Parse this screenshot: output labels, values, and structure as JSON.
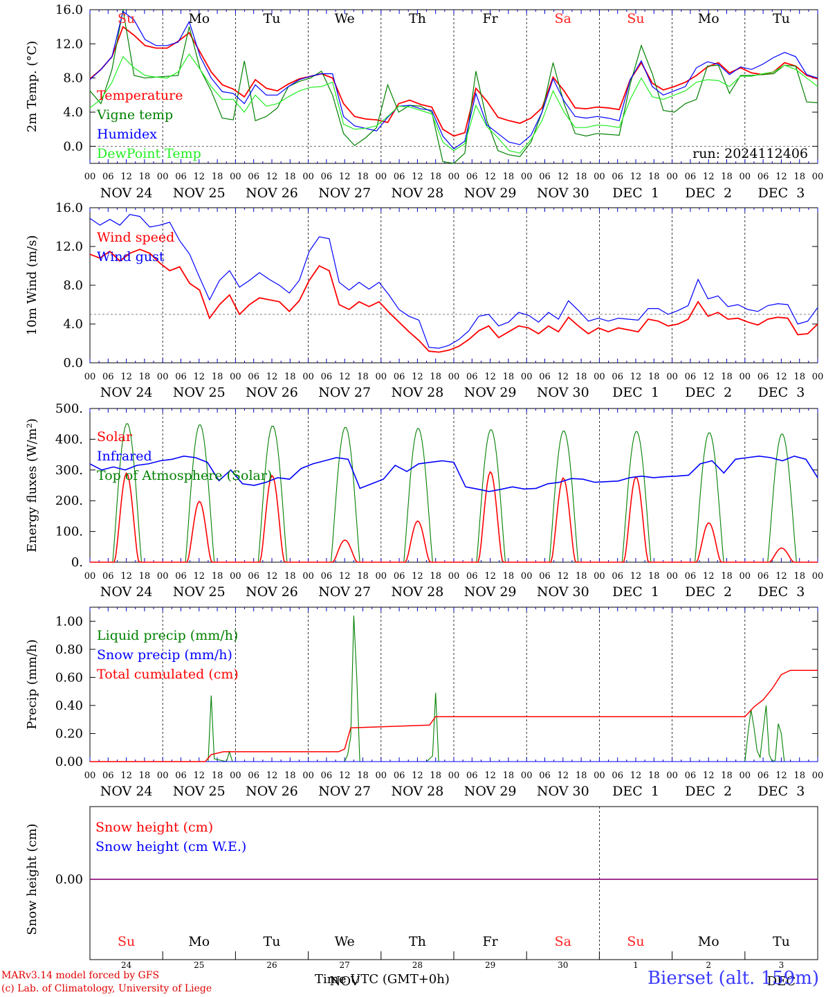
{
  "footer": {
    "credit_line1": "MARv3.14 model forced by GFS",
    "credit_line2": "(c) Lab. of Climatology, University of Liege",
    "x_title": "Time UTC (GMT+0h)",
    "station": "Bierset (alt. 159m)"
  },
  "colors": {
    "red": "#ff0000",
    "dark_green": "#008000",
    "blue": "#0000ff",
    "light_green": "#22ee22",
    "purple": "#800080"
  },
  "chart_data": [
    {
      "type": "line",
      "ylabel": "2m Temp. (°C)",
      "ylim": [
        -2,
        16
      ],
      "yticks": [
        "0.0",
        "4.0",
        "8.0",
        "12.0",
        "16.0"
      ],
      "run_label": "run: 2024112406",
      "reference_line": 0,
      "day_labels": [
        {
          "text": "Su",
          "weekend": true
        },
        {
          "text": "Mo",
          "weekend": false
        },
        {
          "text": "Tu",
          "weekend": false
        },
        {
          "text": "We",
          "weekend": false
        },
        {
          "text": "Th",
          "weekend": false
        },
        {
          "text": "Fr",
          "weekend": false
        },
        {
          "text": "Sa",
          "weekend": true
        },
        {
          "text": "Su",
          "weekend": true
        },
        {
          "text": "Mo",
          "weekend": false
        },
        {
          "text": "Tu",
          "weekend": false
        }
      ],
      "date_labels": [
        "NOV 24",
        "NOV 25",
        "NOV 26",
        "NOV 27",
        "NOV 28",
        "NOV 29",
        "NOV 30",
        "DEC  1",
        "DEC  2",
        "DEC  3"
      ],
      "x_hours": [
        0,
        3,
        6,
        9,
        12,
        15,
        18,
        21,
        24,
        27,
        30,
        33,
        36,
        39,
        42,
        45,
        48,
        51,
        54,
        57,
        60,
        63,
        66,
        69,
        72,
        75,
        78,
        81,
        84,
        87,
        90,
        93,
        96,
        99,
        102,
        105,
        108,
        111,
        114,
        117,
        120,
        123,
        126,
        129,
        132,
        135,
        138,
        141,
        144,
        147,
        150,
        153,
        156,
        159,
        162,
        165,
        168,
        171,
        174,
        177,
        180,
        183,
        186,
        189,
        192,
        195,
        198,
        201,
        204,
        207,
        210,
        213,
        216,
        219,
        222,
        225,
        228,
        231,
        234,
        237,
        240
      ],
      "series": [
        {
          "name": "Temperature",
          "color": "red",
          "values": [
            7.9,
            9.0,
            10.5,
            14.0,
            13.0,
            11.8,
            11.5,
            11.5,
            12.3,
            13.3,
            11.0,
            8.7,
            7.2,
            6.7,
            5.8,
            7.8,
            6.8,
            6.5,
            7.3,
            7.9,
            8.2,
            8.5,
            8.0,
            5.0,
            3.5,
            3.2,
            3.1,
            2.8,
            5.0,
            5.4,
            4.9,
            4.6,
            2.0,
            1.2,
            1.6,
            6.8,
            5.3,
            3.4,
            3.0,
            2.7,
            3.3,
            4.5,
            8.1,
            6.5,
            4.5,
            4.4,
            4.6,
            4.5,
            4.3,
            7.8,
            9.8,
            7.4,
            6.6,
            7.0,
            7.5,
            8.3,
            9.3,
            9.8,
            8.6,
            9.2,
            8.6,
            8.4,
            8.7,
            9.8,
            9.4,
            8.3,
            7.9
          ]
        },
        {
          "name": "Vigne temp",
          "color": "dark_green",
          "values": [
            6.5,
            5.0,
            9.0,
            16.0,
            8.3,
            8.0,
            8.1,
            8.2,
            8.3,
            14.0,
            9.0,
            6.5,
            3.3,
            3.1,
            10.0,
            3.0,
            3.5,
            4.5,
            7.0,
            7.6,
            8.0,
            8.8,
            6.0,
            1.5,
            0.1,
            1.0,
            2.2,
            7.2,
            4.0,
            4.8,
            4.7,
            4.0,
            -1.8,
            -2.0,
            -0.8,
            8.8,
            3.0,
            -0.5,
            -1.0,
            -1.2,
            0.5,
            4.0,
            9.8,
            5.0,
            1.5,
            1.2,
            1.5,
            1.4,
            1.3,
            7.3,
            11.8,
            8.5,
            4.2,
            4.0,
            5.0,
            5.5,
            9.4,
            9.5,
            6.2,
            8.3,
            8.3,
            8.4,
            8.5,
            9.5,
            9.4,
            5.2,
            5.1
          ]
        },
        {
          "name": "Humidex",
          "color": "blue",
          "values": [
            7.8,
            9.0,
            10.5,
            15.8,
            14.8,
            12.5,
            11.8,
            11.8,
            12.2,
            14.6,
            10.5,
            8.0,
            6.4,
            6.2,
            5.0,
            7.2,
            6.0,
            6.0,
            7.0,
            7.8,
            8.2,
            8.5,
            8.5,
            3.5,
            2.4,
            2.1,
            1.8,
            3.4,
            4.7,
            4.8,
            4.4,
            4.2,
            1.2,
            -0.3,
            0.6,
            6.2,
            2.5,
            1.5,
            0.5,
            0.2,
            1.3,
            4.0,
            7.9,
            5.3,
            3.5,
            3.3,
            3.5,
            3.3,
            3.0,
            7.8,
            10.0,
            7.0,
            6.0,
            6.5,
            7.0,
            9.2,
            9.9,
            9.6,
            8.4,
            9.3,
            9.0,
            9.6,
            10.4,
            11.0,
            10.5,
            8.4,
            8.0
          ]
        },
        {
          "name": "DewPoint Temp",
          "color": "light_green",
          "values": [
            4.5,
            5.5,
            7.5,
            10.5,
            9.2,
            8.3,
            8.1,
            8.0,
            8.7,
            10.8,
            9.0,
            7.0,
            5.5,
            5.5,
            4.0,
            6.0,
            4.7,
            5.0,
            5.8,
            6.5,
            6.9,
            7.0,
            7.5,
            2.6,
            2.0,
            2.1,
            2.4,
            3.5,
            4.7,
            4.6,
            4.2,
            3.8,
            0.5,
            -0.5,
            0.3,
            4.8,
            2.3,
            1.0,
            -0.5,
            -0.8,
            0.8,
            3.0,
            6.5,
            4.0,
            2.2,
            2.2,
            2.5,
            2.4,
            2.2,
            5.5,
            8.0,
            5.8,
            5.5,
            6.0,
            6.5,
            7.5,
            7.8,
            7.7,
            7.0,
            8.2,
            8.2,
            8.5,
            8.7,
            9.5,
            9.0,
            8.0,
            7.0
          ]
        }
      ]
    },
    {
      "type": "line",
      "ylabel": "10m Wind (m/s)",
      "ylim": [
        0,
        16
      ],
      "yticks": [
        "0.0",
        "4.0",
        "8.0",
        "12.0",
        "16.0"
      ],
      "reference_line": 5,
      "date_labels": [
        "NOV 24",
        "NOV 25",
        "NOV 26",
        "NOV 27",
        "NOV 28",
        "NOV 29",
        "NOV 30",
        "DEC  1",
        "DEC  2",
        "DEC  3"
      ],
      "series": [
        {
          "name": "Wind speed",
          "color": "red",
          "values": [
            11.2,
            10.8,
            11.5,
            10.5,
            11.3,
            11.7,
            11.3,
            10.3,
            9.5,
            9.9,
            8.2,
            7.5,
            4.6,
            6.0,
            7.0,
            5.0,
            6.0,
            6.7,
            6.5,
            6.3,
            5.3,
            6.4,
            8.5,
            10.0,
            9.5,
            6.0,
            5.5,
            6.3,
            5.8,
            6.3,
            5.2,
            4.2,
            3.2,
            2.3,
            1.2,
            1.1,
            1.3,
            1.7,
            2.4,
            3.3,
            3.8,
            2.6,
            3.2,
            3.8,
            3.6,
            3.0,
            3.8,
            3.2,
            4.7,
            3.8,
            3.0,
            3.6,
            3.2,
            3.6,
            3.4,
            3.2,
            4.5,
            4.3,
            3.8,
            4.0,
            4.5,
            6.3,
            4.8,
            5.2,
            4.5,
            4.6,
            4.2,
            3.9,
            4.5,
            4.7,
            4.6,
            2.9,
            3.0,
            4.0
          ]
        },
        {
          "name": "Wind gust",
          "color": "blue",
          "values": [
            14.9,
            14.2,
            14.8,
            14.2,
            15.3,
            15.1,
            14.0,
            14.2,
            14.5,
            12.6,
            11.2,
            8.8,
            6.5,
            8.5,
            9.5,
            7.8,
            8.5,
            9.3,
            8.6,
            8.0,
            7.2,
            8.5,
            11.5,
            13.0,
            12.8,
            8.3,
            7.5,
            8.3,
            7.6,
            8.3,
            7.0,
            5.5,
            4.8,
            4.4,
            1.6,
            1.5,
            1.8,
            2.4,
            3.3,
            4.8,
            5.0,
            3.8,
            4.2,
            5.2,
            4.9,
            4.2,
            5.2,
            4.5,
            6.4,
            5.4,
            4.3,
            4.6,
            4.3,
            4.6,
            4.5,
            4.4,
            5.6,
            5.6,
            5.0,
            5.4,
            5.9,
            8.6,
            6.6,
            6.9,
            5.8,
            6.0,
            5.5,
            5.3,
            5.9,
            6.1,
            6.0,
            4.0,
            4.3,
            5.7
          ]
        }
      ]
    },
    {
      "type": "line",
      "ylabel": "Energy fluxes (W/m²)",
      "ylim": [
        0,
        500
      ],
      "yticks": [
        "0.",
        "100.",
        "200.",
        "300.",
        "400.",
        "500."
      ],
      "date_labels": [
        "NOV 24",
        "NOV 25",
        "NOV 26",
        "NOV 27",
        "NOV 28",
        "NOV 29",
        "NOV 30",
        "DEC  1",
        "DEC  2",
        "DEC  3"
      ],
      "solar_peaks": [
        290,
        198,
        282,
        72,
        134,
        294,
        274,
        278,
        128,
        46
      ],
      "toa_peaks": [
        452,
        448,
        444,
        440,
        436,
        432,
        428,
        426,
        422,
        418
      ],
      "series": [
        {
          "name": "Solar",
          "color": "red"
        },
        {
          "name": "Infrared",
          "color": "blue",
          "values": [
            320,
            300,
            310,
            300,
            315,
            320,
            330,
            335,
            345,
            340,
            325,
            265,
            300,
            255,
            250,
            260,
            275,
            270,
            305,
            320,
            330,
            340,
            335,
            240,
            255,
            270,
            315,
            295,
            320,
            325,
            330,
            325,
            245,
            238,
            230,
            237,
            245,
            238,
            240,
            255,
            260,
            272,
            270,
            260,
            262,
            264,
            275,
            280,
            275,
            278,
            280,
            283,
            320,
            330,
            290,
            335,
            340,
            345,
            340,
            330,
            345,
            335,
            275
          ]
        },
        {
          "name": "Top of Atmosphere (Solar)",
          "color": "dark_green"
        }
      ]
    },
    {
      "type": "line",
      "ylabel": "Precip (mm/h)",
      "ylim": [
        0,
        1.1
      ],
      "yticks": [
        "0.00",
        "0.20",
        "0.40",
        "0.60",
        "0.80",
        "1.00"
      ],
      "date_labels": [
        "NOV 24",
        "NOV 25",
        "NOV 26",
        "NOV 27",
        "NOV 28",
        "NOV 29",
        "NOV 30",
        "DEC  1",
        "DEC  2",
        "DEC  3"
      ],
      "series": [
        {
          "name": "Liquid precip (mm/h)",
          "color": "dark_green",
          "points": [
            [
              0,
              0
            ],
            [
              39,
              0
            ],
            [
              40,
              0.47
            ],
            [
              41,
              0.02
            ],
            [
              43,
              0.01
            ],
            [
              45,
              0
            ],
            [
              46,
              0.07
            ],
            [
              47,
              0
            ],
            [
              84,
              0
            ],
            [
              85,
              0.05
            ],
            [
              86,
              0.18
            ],
            [
              87,
              1.04
            ],
            [
              88,
              0.6
            ],
            [
              89,
              0
            ],
            [
              111,
              0
            ],
            [
              112,
              0.02
            ],
            [
              113,
              0.04
            ],
            [
              114,
              0.49
            ],
            [
              115,
              0
            ],
            [
              216,
              0
            ],
            [
              217,
              0.2
            ],
            [
              218,
              0.37
            ],
            [
              219,
              0.24
            ],
            [
              220,
              0.08
            ],
            [
              221,
              0.03
            ],
            [
              222,
              0.22
            ],
            [
              223,
              0.4
            ],
            [
              224,
              0.05
            ],
            [
              225,
              0
            ],
            [
              226,
              0.01
            ],
            [
              227,
              0.27
            ],
            [
              228,
              0.2
            ],
            [
              229,
              0
            ],
            [
              240,
              0
            ]
          ]
        },
        {
          "name": "Snow precip (mm/h)",
          "color": "blue",
          "points": [
            [
              0,
              0
            ],
            [
              240,
              0
            ]
          ]
        },
        {
          "name": "Total cumulated (cm)",
          "color": "red",
          "points": [
            [
              0,
              0
            ],
            [
              38,
              0
            ],
            [
              40,
              0.05
            ],
            [
              44,
              0.07
            ],
            [
              82,
              0.07
            ],
            [
              84,
              0.09
            ],
            [
              86,
              0.24
            ],
            [
              112,
              0.26
            ],
            [
              114,
              0.32
            ],
            [
              216,
              0.32
            ],
            [
              219,
              0.39
            ],
            [
              222,
              0.44
            ],
            [
              225,
              0.52
            ],
            [
              228,
              0.62
            ],
            [
              231,
              0.65
            ],
            [
              240,
              0.65
            ]
          ]
        }
      ]
    },
    {
      "type": "line",
      "ylabel": "Snow height (cm)",
      "ytick": "0.00",
      "series": [
        {
          "name": "Snow height (cm)",
          "color": "red",
          "points": [
            [
              0,
              0
            ],
            [
              240,
              0
            ]
          ]
        },
        {
          "name": "Snow height (cm W.E.)",
          "color": "blue",
          "points": [
            [
              0,
              0
            ],
            [
              240,
              0
            ]
          ]
        }
      ],
      "day_labels": [
        {
          "text": "Su",
          "weekend": true
        },
        {
          "text": "Mo",
          "weekend": false
        },
        {
          "text": "Tu",
          "weekend": false
        },
        {
          "text": "We",
          "weekend": false
        },
        {
          "text": "Th",
          "weekend": false
        },
        {
          "text": "Fr",
          "weekend": false
        },
        {
          "text": "Sa",
          "weekend": true
        },
        {
          "text": "Su",
          "weekend": true
        },
        {
          "text": "Mo",
          "weekend": false
        },
        {
          "text": "Tu",
          "weekend": false
        }
      ],
      "day_numbers": [
        "24",
        "25",
        "26",
        "27",
        "28",
        "29",
        "30",
        "1",
        "2",
        "3"
      ],
      "month_labels": [
        "NOV",
        "DEC"
      ]
    }
  ]
}
